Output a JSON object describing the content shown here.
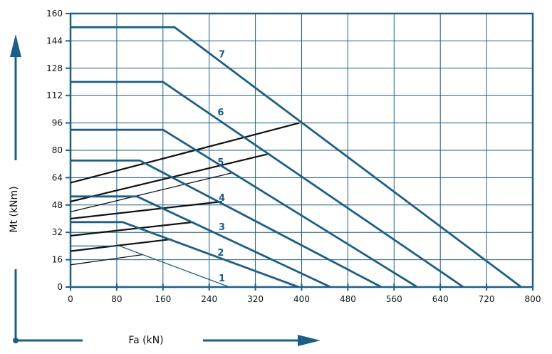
{
  "chart_data": {
    "type": "line",
    "xlabel": "Fa (kN)",
    "ylabel": "Mt (kNm)",
    "xlim": [
      0,
      800
    ],
    "ylim": [
      0,
      160
    ],
    "x_ticks": [
      "0",
      "80",
      "160",
      "240",
      "320",
      "400",
      "480",
      "560",
      "640",
      "720",
      "800"
    ],
    "y_ticks": [
      "0",
      "16",
      "32",
      "48",
      "64",
      "80",
      "96",
      "112",
      "128",
      "144",
      "160"
    ],
    "grid": true,
    "colors": {
      "curves": "#1a5f8c",
      "lines": "#111111",
      "grid": "#1a5f8c"
    },
    "series": [
      {
        "name": "1",
        "x": [
          0,
          85,
          275
        ],
        "y": [
          24,
          24,
          0
        ]
      },
      {
        "name": "2",
        "x": [
          0,
          90,
          395
        ],
        "y": [
          38,
          38,
          0
        ]
      },
      {
        "name": "3",
        "x": [
          0,
          115,
          450
        ],
        "y": [
          53,
          53,
          0
        ]
      },
      {
        "name": "4",
        "x": [
          0,
          120,
          538
        ],
        "y": [
          74,
          74,
          0
        ]
      },
      {
        "name": "5",
        "x": [
          0,
          160,
          600
        ],
        "y": [
          92,
          92,
          0
        ]
      },
      {
        "name": "6",
        "x": [
          0,
          160,
          680
        ],
        "y": [
          120,
          120,
          0
        ]
      },
      {
        "name": "7",
        "x": [
          0,
          180,
          780
        ],
        "y": [
          152,
          152,
          0
        ]
      }
    ],
    "label_positions": [
      {
        "text": "1",
        "x": 262,
        "y": 5
      },
      {
        "text": "2",
        "x": 260,
        "y": 20
      },
      {
        "text": "3",
        "x": 262,
        "y": 35
      },
      {
        "text": "4",
        "x": 262,
        "y": 52
      },
      {
        "text": "5",
        "x": 260,
        "y": 73
      },
      {
        "text": "6",
        "x": 260,
        "y": 102
      },
      {
        "text": "7",
        "x": 262,
        "y": 136
      }
    ],
    "black_lines": [
      {
        "x": [
          0,
          126
        ],
        "y": [
          13,
          19
        ],
        "weight": "thin"
      },
      {
        "x": [
          0,
          175
        ],
        "y": [
          21,
          28
        ],
        "weight": "thick"
      },
      {
        "x": [
          0,
          213
        ],
        "y": [
          30,
          38
        ],
        "weight": "thick"
      },
      {
        "x": [
          0,
          262
        ],
        "y": [
          40,
          50
        ],
        "weight": "thick"
      },
      {
        "x": [
          0,
          282
        ],
        "y": [
          44,
          67
        ],
        "weight": "thin"
      },
      {
        "x": [
          0,
          344
        ],
        "y": [
          50,
          78
        ],
        "weight": "thick"
      },
      {
        "x": [
          0,
          396
        ],
        "y": [
          61,
          96
        ],
        "weight": "thick"
      }
    ]
  }
}
